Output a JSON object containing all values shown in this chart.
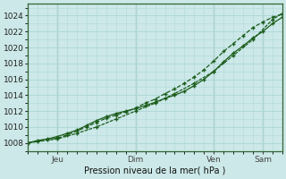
{
  "xlabel": "Pression niveau de la mer( hPa )",
  "bg_color": "#cce8e8",
  "grid_color": "#b0d8d8",
  "line_color": "#1a5c1a",
  "ylim": [
    1007.0,
    1025.5
  ],
  "yticks": [
    1008,
    1010,
    1012,
    1014,
    1016,
    1018,
    1020,
    1022,
    1024
  ],
  "xmin": 0,
  "xmax": 156,
  "day_positions": [
    18,
    66,
    114,
    144
  ],
  "day_labels": [
    "Jeu",
    "Dim",
    "Ven",
    "Sam"
  ],
  "series1": {
    "x": [
      0,
      6,
      12,
      18,
      24,
      30,
      36,
      42,
      48,
      54,
      60,
      66,
      72,
      78,
      84,
      90,
      96,
      102,
      108,
      114,
      120,
      126,
      132,
      138,
      144,
      150,
      156
    ],
    "y": [
      1008,
      1008.3,
      1008.5,
      1008.8,
      1009.2,
      1009.6,
      1010.2,
      1010.8,
      1011.3,
      1011.7,
      1012.0,
      1012.3,
      1012.7,
      1013.1,
      1013.6,
      1014.0,
      1014.5,
      1015.2,
      1016.0,
      1017.0,
      1018.2,
      1019.3,
      1020.2,
      1021.2,
      1022.0,
      1023.0,
      1023.8
    ]
  },
  "series2": {
    "x": [
      0,
      6,
      12,
      18,
      24,
      30,
      36,
      42,
      48,
      54,
      60,
      66,
      72,
      78,
      84,
      90,
      96,
      102,
      108,
      114,
      120,
      126,
      132,
      138,
      144,
      150,
      156
    ],
    "y": [
      1008,
      1008.2,
      1008.4,
      1008.6,
      1009.0,
      1009.5,
      1010.0,
      1010.6,
      1011.1,
      1011.5,
      1011.9,
      1012.4,
      1013.0,
      1013.5,
      1014.2,
      1014.8,
      1015.5,
      1016.3,
      1017.2,
      1018.3,
      1019.5,
      1020.5,
      1021.5,
      1022.5,
      1023.2,
      1023.8,
      1024.2
    ]
  },
  "series3": {
    "x": [
      0,
      18,
      30,
      42,
      54,
      66,
      78,
      90,
      102,
      114,
      126,
      138,
      150,
      156
    ],
    "y": [
      1008,
      1008.5,
      1009.2,
      1010.0,
      1011.0,
      1012.0,
      1013.0,
      1014.2,
      1015.5,
      1017.0,
      1019.0,
      1021.0,
      1023.5,
      1024.3
    ]
  }
}
